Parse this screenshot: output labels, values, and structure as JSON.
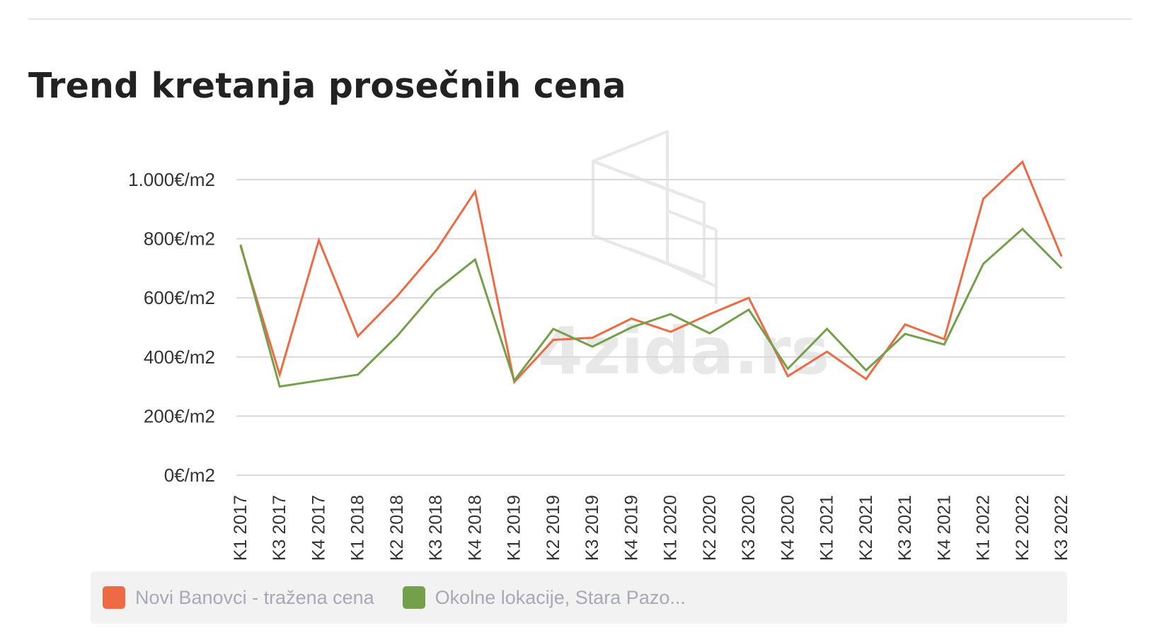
{
  "chart_data": {
    "type": "line",
    "title": "Trend kretanja prosečnih cena",
    "xlabel": "",
    "ylabel": "",
    "categories": [
      "K1 2017",
      "K3 2017",
      "K4 2017",
      "K1 2018",
      "K2 2018",
      "K3 2018",
      "K4 2018",
      "K1 2019",
      "K2 2019",
      "K3 2019",
      "K4 2019",
      "K1 2020",
      "K2 2020",
      "K3 2020",
      "K4 2020",
      "K1 2021",
      "K2 2021",
      "K3 2021",
      "K4 2021",
      "K1 2022",
      "K2 2022",
      "K3 2022"
    ],
    "ylim": [
      0,
      1000
    ],
    "yticks": [
      0,
      200,
      400,
      600,
      800,
      1000
    ],
    "ytick_labels": [
      "0€/m2",
      "200€/m2",
      "400€/m2",
      "600€/m2",
      "800€/m2",
      "1.000€/m2"
    ],
    "grid": true,
    "legend_position": "bottom",
    "series": [
      {
        "name": "Novi Banovci - tražena cena",
        "color": "#ee6a44",
        "values": [
          775,
          340,
          795,
          470,
          605,
          760,
          960,
          315,
          458,
          465,
          530,
          485,
          545,
          600,
          335,
          418,
          325,
          510,
          460,
          935,
          1060,
          740
        ]
      },
      {
        "name": "Okolne lokacije, Stara Pazo...",
        "color": "#74a04c",
        "values": [
          780,
          300,
          320,
          340,
          470,
          625,
          730,
          320,
          495,
          435,
          500,
          545,
          480,
          560,
          360,
          495,
          355,
          478,
          442,
          715,
          833,
          700
        ]
      }
    ]
  },
  "watermark": {
    "text": "4zida.rs",
    "icon": "4zida-logo-icon"
  }
}
